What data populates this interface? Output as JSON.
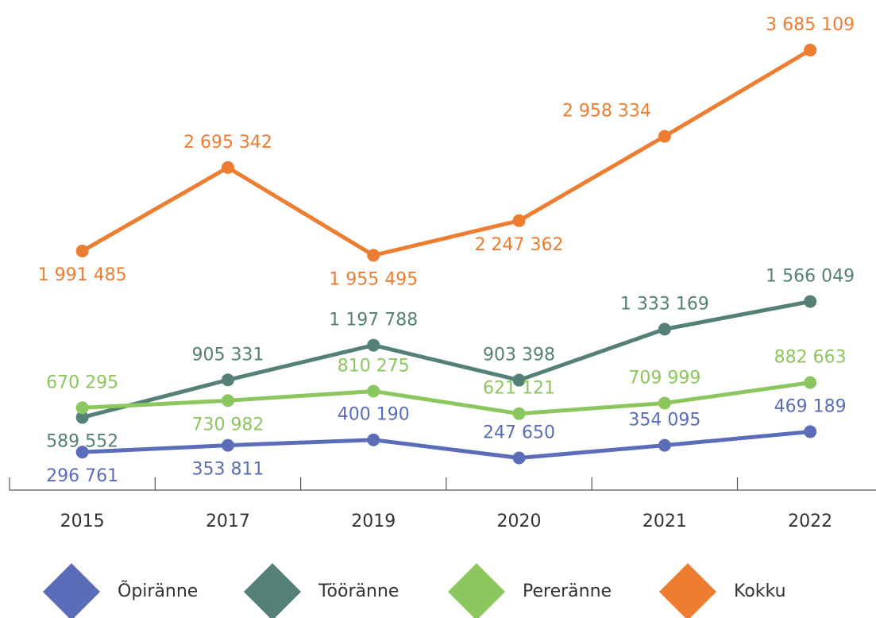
{
  "chart_data": {
    "type": "line",
    "categories": [
      "2015",
      "2017",
      "2019",
      "2020",
      "2021",
      "2022"
    ],
    "ylim": [
      0,
      4000000
    ],
    "series": [
      {
        "name": "Õpiränne",
        "color": "#5b6db8",
        "values": [
          296761,
          353811,
          400190,
          247650,
          354095,
          469189
        ],
        "value_labels": [
          "296 761",
          "353 811",
          "400 190",
          "247 650",
          "354 095",
          "469 189"
        ]
      },
      {
        "name": "Tööränne",
        "color": "#558078",
        "values": [
          589552,
          905331,
          1197788,
          903398,
          1333169,
          1566049
        ],
        "value_labels": [
          "589 552",
          "905 331",
          "1 197 788",
          "903 398",
          "1 333 169",
          "1 566 049"
        ]
      },
      {
        "name": "Pereränne",
        "color": "#8cc65e",
        "values": [
          670295,
          730982,
          810275,
          621121,
          709999,
          882663
        ],
        "value_labels": [
          "670 295",
          "730 982",
          "810 275",
          "621 121",
          "709 999",
          "882 663"
        ]
      },
      {
        "name": "Kokku",
        "color": "#ed7d31",
        "values": [
          1991485,
          2695342,
          1955495,
          2247362,
          2958334,
          3685109
        ],
        "value_labels": [
          "1 991 485",
          "2 695 342",
          "1 955 495",
          "2 247 362",
          "2 958 334",
          "3 685 109"
        ]
      }
    ]
  }
}
